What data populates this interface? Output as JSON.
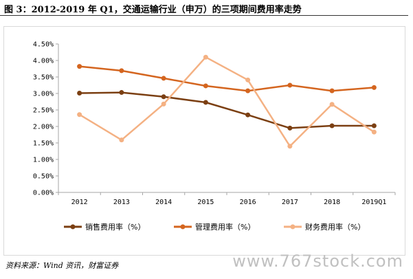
{
  "header": {
    "title": "图 3：2012-2019 年 Q1，交通运输行业（申万）的三项期间费用率走势"
  },
  "footer": {
    "source": "资料来源：Wind 资讯，财富证券",
    "watermark": "www.767stock.com"
  },
  "chart_data": {
    "type": "line",
    "title": "",
    "xlabel": "",
    "ylabel": "",
    "categories": [
      "2012",
      "2013",
      "2014",
      "2015",
      "2016",
      "2017",
      "2018",
      "2019Q1"
    ],
    "yticks": [
      "0.00%",
      "0.50%",
      "1.00%",
      "1.50%",
      "2.00%",
      "2.50%",
      "3.00%",
      "3.50%",
      "4.00%",
      "4.50%"
    ],
    "ylim": [
      0,
      4.5
    ],
    "grid": false,
    "legend_position": "bottom",
    "series": [
      {
        "name": "销售费用率（%）",
        "color": "#7b3f12",
        "values": [
          3.01,
          3.03,
          2.9,
          2.73,
          2.35,
          1.95,
          2.02,
          2.02
        ]
      },
      {
        "name": "管理费用率（%）",
        "color": "#d4651f",
        "values": [
          3.82,
          3.69,
          3.46,
          3.23,
          3.08,
          3.25,
          3.08,
          3.18
        ]
      },
      {
        "name": "财务费用率（%）",
        "color": "#f4b183",
        "values": [
          2.36,
          1.59,
          2.68,
          4.1,
          3.41,
          1.4,
          2.67,
          1.83
        ]
      }
    ]
  }
}
